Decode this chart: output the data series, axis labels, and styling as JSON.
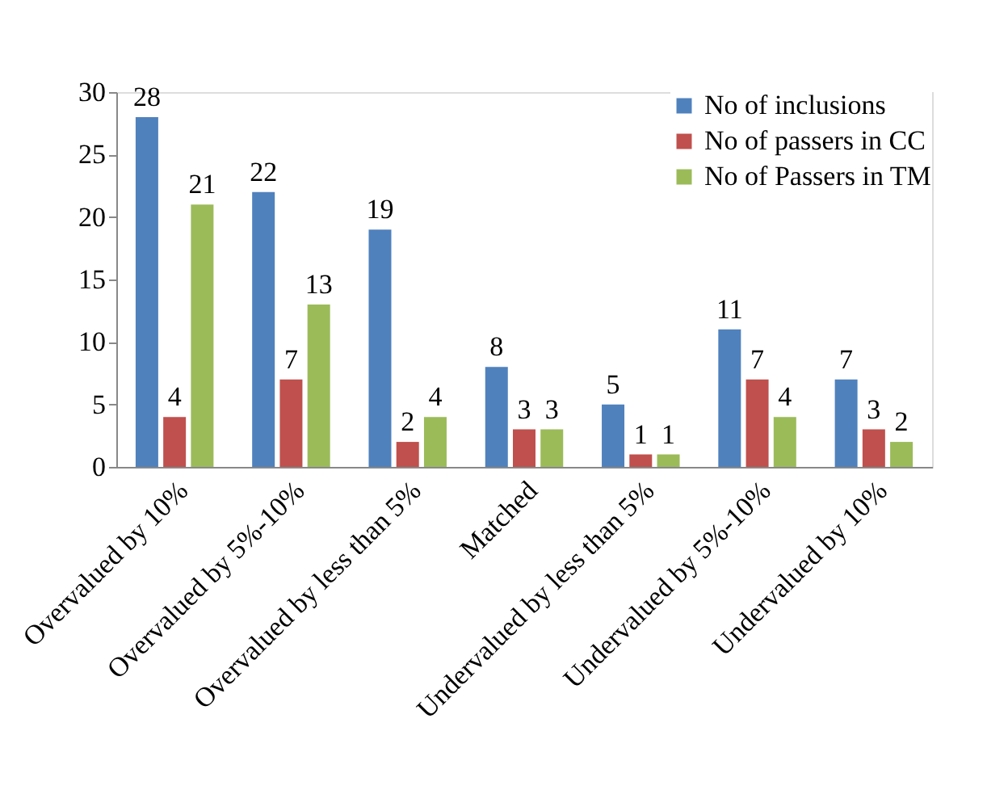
{
  "chart_data": {
    "type": "bar",
    "categories": [
      "Overvalued by 10%",
      "Overvalued by 5%-10%",
      "Overvalued by less than 5%",
      "Matched",
      "Undervalued by less than 5%",
      "Undervalued by 5%-10%",
      "Undervalued by 10%"
    ],
    "series": [
      {
        "name": "No of inclusions",
        "color": "#4f81bd",
        "values": [
          28,
          22,
          19,
          8,
          5,
          11,
          7
        ]
      },
      {
        "name": "No of passers in CC",
        "color": "#c0504d",
        "values": [
          4,
          7,
          2,
          3,
          1,
          7,
          3
        ]
      },
      {
        "name": "No of Passers in TM",
        "color": "#9bbb59",
        "values": [
          21,
          13,
          4,
          3,
          1,
          4,
          2
        ]
      }
    ],
    "ylim": [
      0,
      30
    ],
    "yticks": [
      0,
      5,
      10,
      15,
      20,
      25,
      30
    ],
    "grid": false,
    "legend": "top right",
    "data_labels": true
  }
}
